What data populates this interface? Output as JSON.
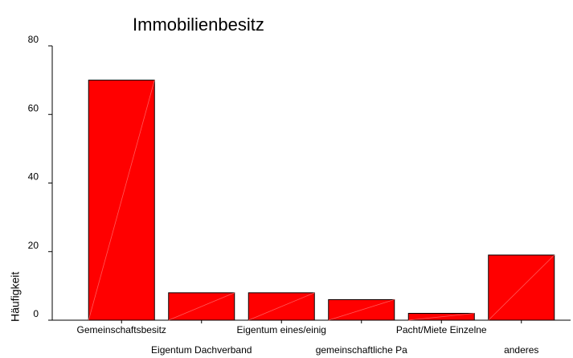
{
  "chart_data": {
    "type": "bar",
    "title": "Immobilienbesitz",
    "y_label": "Häufigkeit",
    "categories": [
      "Gemeinschaftsbesitz",
      "Eigentum Dachverband",
      "Eigentum eines/einig",
      "gemeinschaftliche Pa",
      "Pacht/Miete Einzelne",
      "anderes"
    ],
    "values": [
      70,
      8,
      8,
      6,
      2,
      19
    ],
    "color": "#ff0000",
    "ylim": [
      0,
      80
    ],
    "yticks": [
      0,
      20,
      40,
      60,
      80
    ],
    "grid": false
  }
}
